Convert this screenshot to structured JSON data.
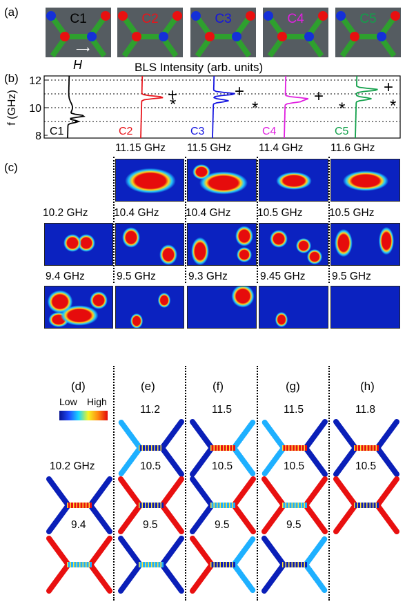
{
  "panels": {
    "a": "(a)",
    "b": "(b)",
    "c": "(c)",
    "d": "(d)",
    "e": "(e)",
    "f": "(f)",
    "g": "(g)",
    "h": "(h)"
  },
  "configs": [
    {
      "label": "C1",
      "color": "#000000"
    },
    {
      "label": "C2",
      "color": "#e8141b"
    },
    {
      "label": "C3",
      "color": "#1515e0"
    },
    {
      "label": "C4",
      "color": "#e020e0"
    },
    {
      "label": "C5",
      "color": "#12a04a"
    }
  ],
  "field_label": "H",
  "chart_data": {
    "type": "line",
    "title": "BLS Intensity (arb. units)",
    "ylabel": "f (GHz)",
    "ylim": [
      7.8,
      12.3
    ],
    "yticks": [
      8,
      10,
      12
    ],
    "gridlines": [
      9,
      10,
      11,
      12
    ],
    "series": [
      {
        "name": "C1",
        "peaks": [
          9.4,
          9.0
        ],
        "color": "#000000"
      },
      {
        "name": "C2",
        "peaks": [
          10.75
        ],
        "color": "#e8141b"
      },
      {
        "name": "C3",
        "peaks": [
          11.0,
          10.5
        ],
        "color": "#1515e0"
      },
      {
        "name": "C4",
        "peaks": [
          10.65,
          10.45
        ],
        "color": "#e020e0"
      },
      {
        "name": "C5",
        "peaks": [
          11.3,
          10.65
        ],
        "color": "#12a04a"
      }
    ],
    "markers": {
      "plus": "+",
      "star": "*"
    }
  },
  "bls_freqs": {
    "row1": [
      "11.15 GHz",
      "11.5 GHz",
      "11.4 GHz",
      "11.6 GHz"
    ],
    "row2": [
      "10.2 GHz",
      "10.4 GHz",
      "10.4 GHz",
      "10.5 GHz",
      "10.5 GHz"
    ],
    "row3": [
      "9.4 GHz",
      "9.5 GHz",
      "9.3 GHz",
      "9.45 GHz",
      "9.5 GHz"
    ]
  },
  "colorbar": {
    "low": "Low",
    "high": "High"
  },
  "sim_freqs": {
    "row1": [
      "11.2",
      "11.5",
      "11.5",
      "11.8"
    ],
    "row2": [
      "10.2 GHz",
      "10.5",
      "10.5",
      "10.5",
      "10.5"
    ],
    "row3": [
      "9.4",
      "9.5",
      "9.5",
      "9.5"
    ]
  },
  "colors": {
    "hot": "#e81010",
    "cold": "#1530d8",
    "bg": "#0a1fb8",
    "magnet": "#2ea02e",
    "gray": "#555c61"
  }
}
